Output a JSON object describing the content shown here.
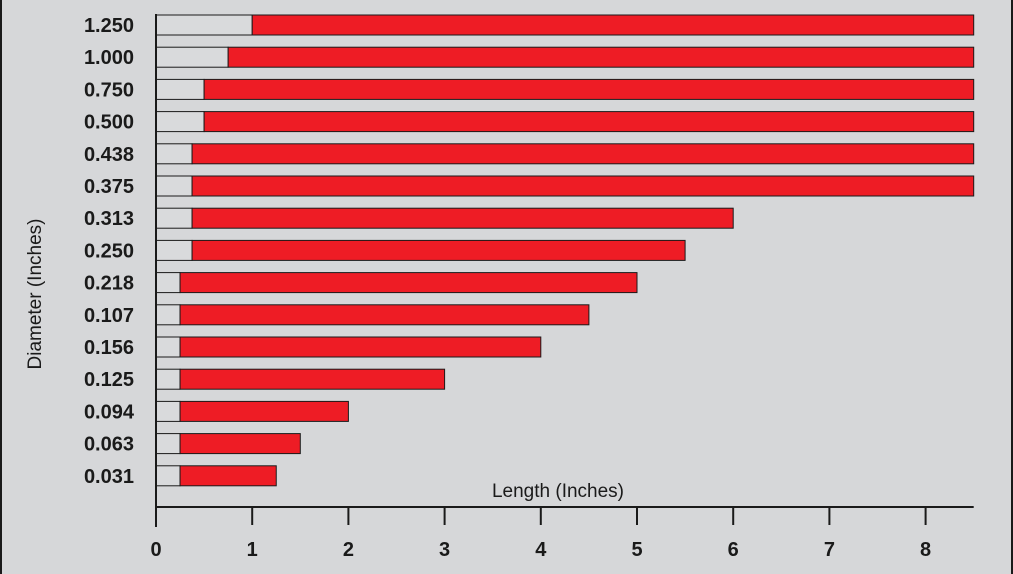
{
  "chart_data": {
    "type": "bar",
    "orientation": "horizontal",
    "stacked": true,
    "xlabel": "Length (Inches)",
    "ylabel": "Diameter (Inches)",
    "xlim": [
      0,
      8.5
    ],
    "x_ticks": [
      "0",
      "1",
      "2",
      "3",
      "4",
      "5",
      "6",
      "7",
      "8"
    ],
    "categories": [
      "1.250",
      "1.000",
      "0.750",
      "0.500",
      "0.438",
      "0.375",
      "0.313",
      "0.250",
      "0.218",
      "0.107",
      "0.156",
      "0.125",
      "0.094",
      "0.063",
      "0.031"
    ],
    "series": [
      {
        "color": "#d9dadc",
        "values": [
          1.0,
          0.75,
          0.5,
          0.5,
          0.375,
          0.375,
          0.375,
          0.375,
          0.25,
          0.25,
          0.25,
          0.25,
          0.25,
          0.25,
          0.25
        ]
      },
      {
        "color": "#ee1c25",
        "values": [
          7.5,
          7.75,
          8.0,
          8.0,
          8.125,
          8.125,
          5.625,
          5.125,
          4.75,
          4.25,
          3.75,
          2.75,
          1.75,
          1.25,
          1.0
        ]
      }
    ],
    "totals": [
      8.5,
      8.5,
      8.5,
      8.5,
      8.5,
      8.5,
      6.0,
      5.5,
      5.0,
      4.5,
      4.0,
      3.0,
      2.0,
      1.5,
      1.25
    ],
    "grid": false,
    "legend": "none",
    "background": "#d6d7d9"
  }
}
